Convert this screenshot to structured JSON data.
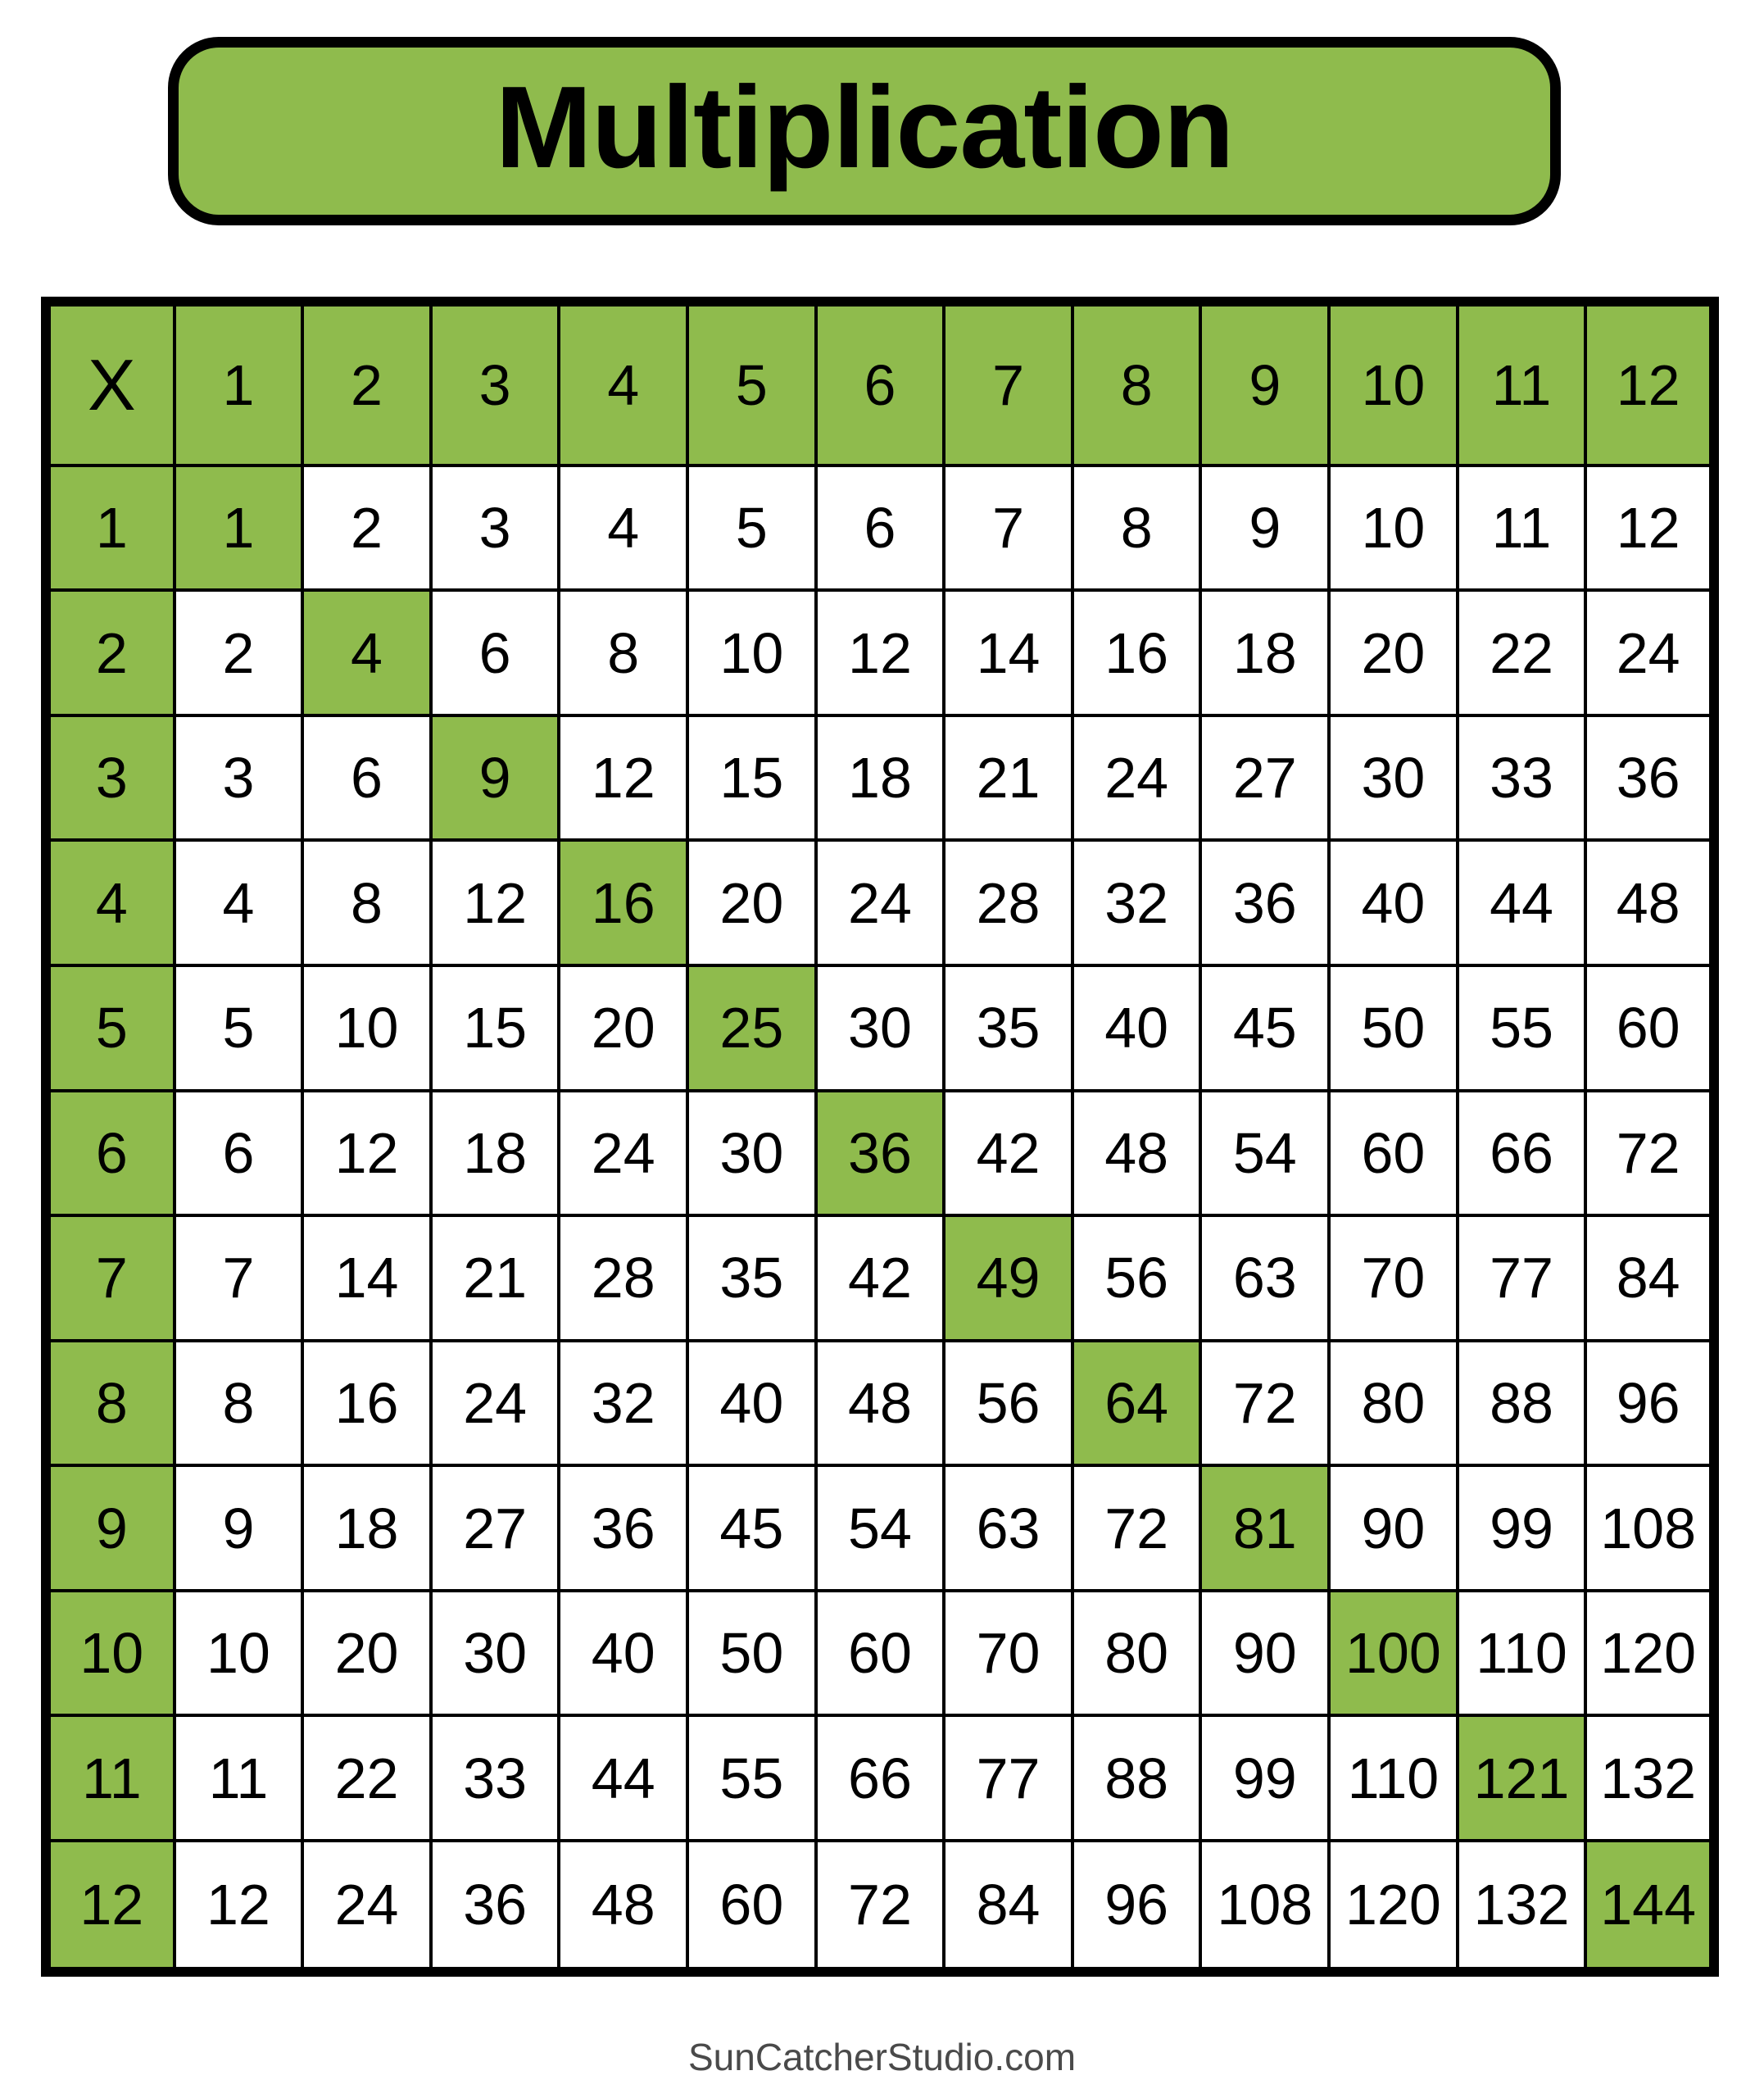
{
  "title": {
    "label": "Multiplication"
  },
  "footer": {
    "label": "SunCatcherStudio.com"
  },
  "colors": {
    "accent_green": "#8FBB4D",
    "grid_border": "#000000",
    "cell_background": "#FFFFFF",
    "page_background": "#FFFFFF",
    "footer_text": "#4A4A4A"
  },
  "chart_data": {
    "type": "table",
    "title": "Multiplication",
    "operator": "X",
    "factors": [
      1,
      2,
      3,
      4,
      5,
      6,
      7,
      8,
      9,
      10,
      11,
      12
    ],
    "rows": [
      [
        1,
        2,
        3,
        4,
        5,
        6,
        7,
        8,
        9,
        10,
        11,
        12
      ],
      [
        2,
        4,
        6,
        8,
        10,
        12,
        14,
        16,
        18,
        20,
        22,
        24
      ],
      [
        3,
        6,
        9,
        12,
        15,
        18,
        21,
        24,
        27,
        30,
        33,
        36
      ],
      [
        4,
        8,
        12,
        16,
        20,
        24,
        28,
        32,
        36,
        40,
        44,
        48
      ],
      [
        5,
        10,
        15,
        20,
        25,
        30,
        35,
        40,
        45,
        50,
        55,
        60
      ],
      [
        6,
        12,
        18,
        24,
        30,
        36,
        42,
        48,
        54,
        60,
        66,
        72
      ],
      [
        7,
        14,
        21,
        28,
        35,
        42,
        49,
        56,
        63,
        70,
        77,
        84
      ],
      [
        8,
        16,
        24,
        32,
        40,
        48,
        56,
        64,
        72,
        80,
        88,
        96
      ],
      [
        9,
        18,
        27,
        36,
        45,
        54,
        63,
        72,
        81,
        90,
        99,
        108
      ],
      [
        10,
        20,
        30,
        40,
        50,
        60,
        70,
        80,
        90,
        100,
        110,
        120
      ],
      [
        11,
        22,
        33,
        44,
        55,
        66,
        77,
        88,
        99,
        110,
        121,
        132
      ],
      [
        12,
        24,
        36,
        48,
        60,
        72,
        84,
        96,
        108,
        120,
        132,
        144
      ]
    ],
    "highlighted_cells": "header row, header column, and perfect-square diagonal are green"
  }
}
